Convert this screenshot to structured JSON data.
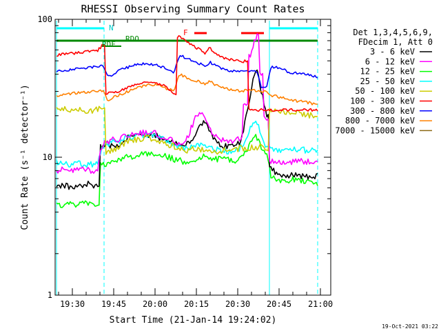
{
  "chart_data": {
    "type": "line",
    "title": "RHESSI Observing Summary Count Rates",
    "xlabel": "Start Time (21-Jan-14 19:24:02)",
    "ylabel": "Count Rate (s⁻¹ detector⁻¹)",
    "x_tick_labels": [
      "19:30",
      "19:45",
      "20:00",
      "20:15",
      "20:30",
      "20:45",
      "21:00"
    ],
    "y_tick_labels": [
      "1",
      "10",
      "100"
    ],
    "ylim": [
      1,
      100
    ],
    "y_scale": "log",
    "legend_header": [
      "Det 1,3,4,5,6,9,",
      "FDecim 1, Att 0"
    ],
    "timestamp": "19-Oct-2021 03:22",
    "flag_labels": {
      "rdo_low": "RDF",
      "rdo_high": "RDO",
      "flare": "F",
      "night": "N"
    },
    "series": [
      {
        "name": "3 - 6 keV",
        "color": "#000000",
        "values": [
          6.2,
          6.3,
          6.2,
          6.0,
          6.1,
          6.3,
          6.4,
          6.3,
          6.0,
          12,
          12.5,
          12,
          12,
          13,
          14,
          14,
          14.5,
          14.5,
          14.5,
          14.5,
          14,
          13.5,
          13,
          13,
          12,
          12,
          13,
          14,
          17,
          18,
          15,
          13,
          12,
          12,
          12,
          12,
          13,
          19,
          30,
          45,
          30,
          20,
          8.5,
          7.5,
          7.4,
          7.3,
          7.5,
          7.4,
          7.3,
          7.2,
          7.3,
          7.4
        ]
      },
      {
        "name": "6 - 12 keV",
        "color": "#ff00ff",
        "values": [
          8.0,
          8.1,
          8.0,
          8.1,
          8.0,
          8.2,
          8.1,
          8.0,
          8.1,
          12.5,
          13,
          13.5,
          13.5,
          14,
          14.5,
          15,
          15,
          15,
          15,
          15,
          14.5,
          14,
          13.5,
          13,
          12.5,
          13,
          15,
          19,
          22,
          20,
          16,
          14,
          13.5,
          13,
          13,
          13,
          14,
          25,
          55,
          75,
          40,
          19,
          9.5,
          9.3,
          9.2,
          9.2,
          9.3,
          9.4,
          9.3,
          9.2,
          9.3,
          9.4
        ]
      },
      {
        "name": "12 - 25 keV",
        "color": "#00ff00",
        "values": [
          4.6,
          4.4,
          4.5,
          4.6,
          4.4,
          4.7,
          4.6,
          4.5,
          4.6,
          8.8,
          9,
          9.2,
          9.5,
          9.8,
          10,
          10.2,
          10.5,
          10.5,
          10.6,
          10.5,
          10.4,
          10.2,
          10,
          9.6,
          9.5,
          9.3,
          9.4,
          9.6,
          10,
          10.2,
          10,
          9.8,
          9.6,
          9.6,
          9.5,
          9.5,
          9.8,
          11,
          13,
          14,
          12,
          10.5,
          7.0,
          6.9,
          6.8,
          6.8,
          6.9,
          6.7,
          6.8,
          6.6,
          6.5,
          6.4
        ]
      },
      {
        "name": "25 - 50 keV",
        "color": "#00ffff",
        "values": [
          9.3,
          9.0,
          8.9,
          8.8,
          8.9,
          9.0,
          8.9,
          8.8,
          8.9,
          12,
          12.5,
          13,
          13,
          13.5,
          14,
          14,
          14.5,
          14.5,
          14.5,
          14.5,
          14,
          13.5,
          13,
          12.5,
          12,
          11.5,
          11.5,
          12,
          12.5,
          12.5,
          12,
          11.5,
          11.2,
          11,
          11,
          11.2,
          11.8,
          13,
          17,
          19,
          14,
          12,
          11.3,
          11.2,
          11.2,
          11.3,
          11.5,
          11.4,
          11.3,
          11.2,
          11.1,
          11.0
        ]
      },
      {
        "name": "50 - 100 keV",
        "color": "#cccc00",
        "values": [
          22,
          22.5,
          22.3,
          22,
          21.8,
          22,
          21.9,
          21.8,
          22,
          23.5,
          10.8,
          11.4,
          11.8,
          12.3,
          13,
          13.3,
          13.6,
          13.8,
          13.9,
          13.6,
          13.2,
          12.5,
          12.3,
          12,
          11.5,
          11.2,
          11.3,
          11.5,
          11.3,
          11.2,
          11,
          11,
          11,
          11.2,
          11.3,
          11.5,
          11.6,
          11.7,
          11.8,
          11.9,
          11.8,
          11.6,
          22.5,
          22,
          21.5,
          21.2,
          21,
          20.8,
          20.5,
          20.2,
          20,
          19.8
        ]
      },
      {
        "name": "100 - 300 keV",
        "color": "#ff0000",
        "values": [
          55,
          55.5,
          56,
          56.5,
          57,
          57.5,
          58,
          58.5,
          59,
          65,
          29,
          29.5,
          30,
          31,
          32,
          33,
          34,
          35,
          35,
          34.5,
          34,
          33,
          31,
          29,
          75,
          70,
          67,
          63,
          60,
          57,
          62,
          57,
          53,
          52,
          51,
          50,
          49,
          50,
          22,
          22,
          22,
          22,
          22,
          22,
          22,
          22,
          22,
          22,
          22,
          22,
          22,
          22
        ]
      },
      {
        "name": "300 - 800 keV",
        "color": "#0000ff",
        "values": [
          42,
          42.5,
          42.8,
          43,
          43.5,
          44,
          44.5,
          45,
          45.5,
          46,
          38,
          40,
          42,
          43.5,
          45,
          46,
          47,
          47.5,
          47.5,
          47,
          46,
          44.5,
          42.5,
          41,
          55,
          53,
          51,
          49,
          47.5,
          46,
          49,
          46,
          44,
          43,
          42.5,
          42,
          41.5,
          42,
          43,
          42.5,
          32,
          32,
          45.5,
          44.5,
          43.5,
          42,
          41,
          40.5,
          40,
          39.5,
          39,
          38
        ]
      },
      {
        "name": "800 - 7000 keV",
        "color": "#ff8000",
        "values": [
          28,
          28.3,
          28.6,
          29,
          29.3,
          29.5,
          29.8,
          30,
          30.2,
          30.5,
          26,
          27,
          28,
          29,
          30,
          31,
          32,
          33,
          34,
          33.5,
          33,
          32,
          31,
          30,
          40,
          38.5,
          37,
          36,
          35,
          34,
          36,
          33.5,
          32,
          31.5,
          31,
          30.5,
          30,
          30.5,
          31,
          30.5,
          30,
          30,
          28,
          27.5,
          27,
          26.5,
          26,
          25.5,
          25.5,
          25,
          24.5,
          24
        ]
      },
      {
        "name": "7000 - 15000 keV",
        "color": "#8b6914",
        "values": []
      }
    ]
  }
}
